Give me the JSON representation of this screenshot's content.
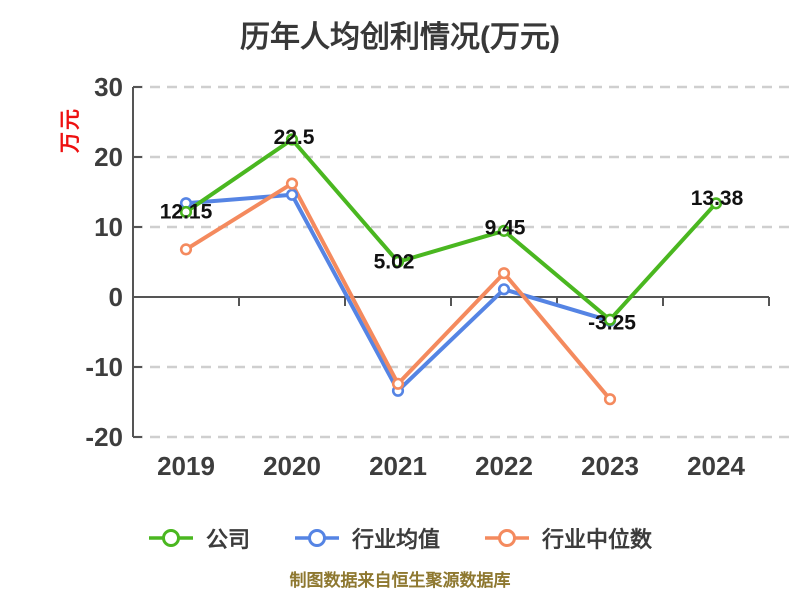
{
  "chart": {
    "title": "历年人均创利情况(万元)",
    "y_unit": "万元",
    "colors": {
      "company": "#4ab720",
      "industry_average": "#5584e4",
      "industry_median": "#f48a5e",
      "title": "#383838",
      "axis": "#555555",
      "tick_label": "#3d3d3d",
      "grid": "#cfcfcf",
      "data_label": "#111111",
      "y_unit": "#ee1010",
      "footer": "#8e7830",
      "marker_fill": "#ffffff",
      "background": "#ffffff"
    }
  },
  "chart_data": {
    "type": "line",
    "title": "历年人均创利情况(万元)",
    "categories": [
      "2019",
      "2020",
      "2021",
      "2022",
      "2023",
      "2024"
    ],
    "y_ticks": [
      30,
      20,
      10,
      0,
      -10,
      -20
    ],
    "ylim": [
      -20,
      30
    ],
    "ylabel": "万元",
    "xlabel": "",
    "grid": "horizontal-dashed",
    "legend_position": "bottom",
    "series": [
      {
        "name": "公司",
        "color": "#4ab720",
        "values": [
          12.15,
          22.5,
          5.02,
          9.45,
          -3.25,
          13.38
        ],
        "point_labels": [
          "12.15",
          "22.5",
          "5.02",
          "9.45",
          "-3.25",
          "13.38"
        ]
      },
      {
        "name": "行业均值",
        "color": "#5584e4",
        "values": [
          13.4,
          14.6,
          -13.4,
          1.1,
          -3.4,
          null
        ]
      },
      {
        "name": "行业中位数",
        "color": "#f48a5e",
        "values": [
          6.8,
          16.2,
          -12.4,
          3.4,
          -14.6,
          null
        ]
      }
    ]
  },
  "legend": {
    "items": [
      {
        "label": "公司",
        "color": "#4ab720"
      },
      {
        "label": "行业均值",
        "color": "#5584e4"
      },
      {
        "label": "行业中位数",
        "color": "#f48a5e"
      }
    ]
  },
  "footer": {
    "text": "制图数据来自恒生聚源数据库"
  }
}
